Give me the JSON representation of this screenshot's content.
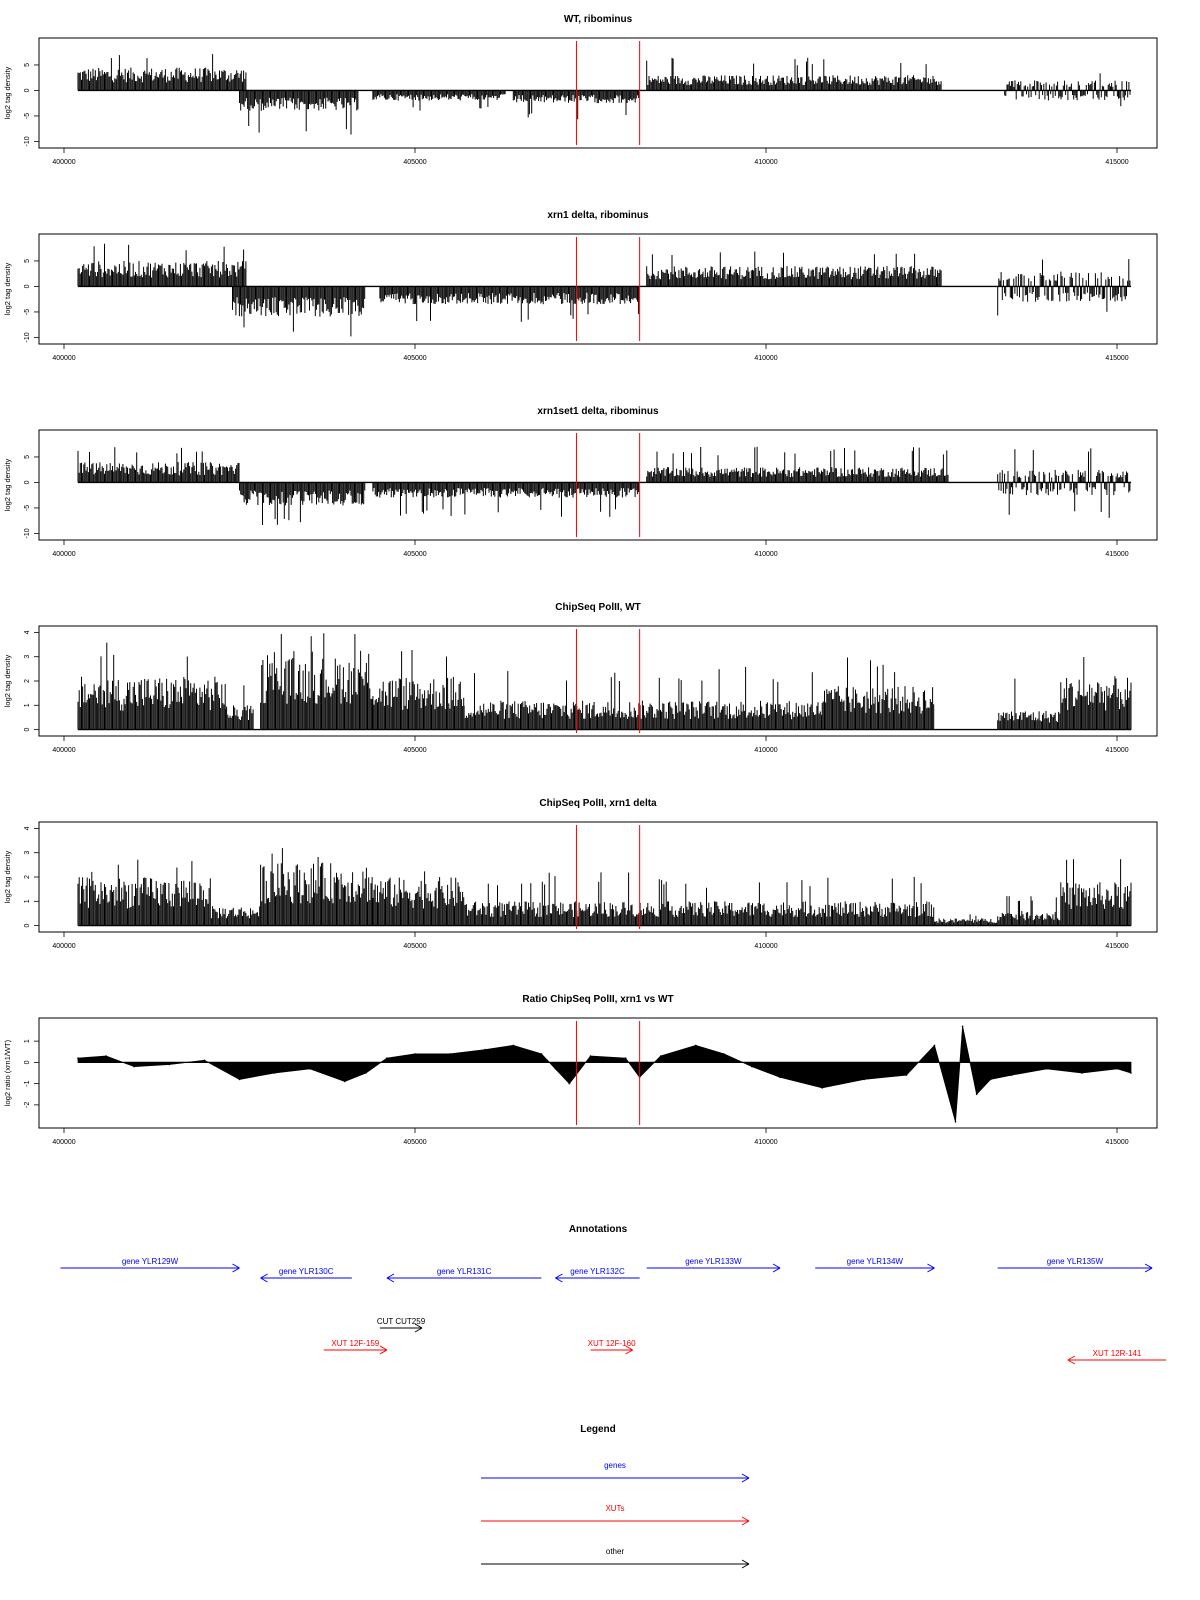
{
  "chart_data": [
    {
      "type": "bar",
      "title": "WT, ribominus",
      "ylabel": "log2 tag density",
      "xlim": [
        400000,
        415500
      ],
      "ylim": [
        -10.5,
        9.5
      ],
      "x_ticks": [
        "400000",
        "405000",
        "410000",
        "415000"
      ],
      "y_ticks": [
        "-10",
        "-5",
        "0",
        "5"
      ],
      "marker_lines_x": [
        407300,
        408200
      ],
      "signal_segments": [
        {
          "x": [
            400200,
            402600
          ],
          "strand": "plus",
          "typical_max": 4.5,
          "peak": 7.8
        },
        {
          "x": [
            402500,
            404200
          ],
          "strand": "minus",
          "typical_max": 4,
          "peak": -9
        },
        {
          "x": [
            404400,
            406300
          ],
          "strand": "minus",
          "typical_max": 2,
          "peak": -4
        },
        {
          "x": [
            406400,
            408200
          ],
          "strand": "minus",
          "typical_max": 2.5,
          "peak": -6
        },
        {
          "x": [
            408300,
            412500
          ],
          "strand": "plus",
          "typical_max": 3,
          "peak": 6.5
        },
        {
          "x": [
            413400,
            415200
          ],
          "strand": "both",
          "typical_max": 2,
          "peak": 4
        }
      ]
    },
    {
      "type": "bar",
      "title": "xrn1 delta, ribominus",
      "ylabel": "log2 tag density",
      "xlim": [
        400000,
        415500
      ],
      "ylim": [
        -10.5,
        9.5
      ],
      "x_ticks": [
        "400000",
        "405000",
        "410000",
        "415000"
      ],
      "y_ticks": [
        "-10",
        "-5",
        "0",
        "5"
      ],
      "marker_lines_x": [
        407300,
        408200
      ],
      "signal_segments": [
        {
          "x": [
            400200,
            402600
          ],
          "strand": "plus",
          "typical_max": 5,
          "peak": 9
        },
        {
          "x": [
            402400,
            404300
          ],
          "strand": "minus",
          "typical_max": 6,
          "peak": -10.5
        },
        {
          "x": [
            404500,
            408200
          ],
          "strand": "minus",
          "typical_max": 3.5,
          "peak": -7
        },
        {
          "x": [
            408300,
            412500
          ],
          "strand": "plus",
          "typical_max": 4,
          "peak": 7
        },
        {
          "x": [
            413300,
            415200
          ],
          "strand": "both",
          "typical_max": 3,
          "peak": -6
        }
      ]
    },
    {
      "type": "bar",
      "title": "xrn1set1 delta, ribominus",
      "ylabel": "log2 tag density",
      "xlim": [
        400000,
        415500
      ],
      "ylim": [
        -10.5,
        9.5
      ],
      "x_ticks": [
        "400000",
        "405000",
        "410000",
        "415000"
      ],
      "y_ticks": [
        "-10",
        "-5",
        "0",
        "5"
      ],
      "marker_lines_x": [
        407300,
        408200
      ],
      "signal_segments": [
        {
          "x": [
            400200,
            402500
          ],
          "strand": "plus",
          "typical_max": 4,
          "peak": 7
        },
        {
          "x": [
            402500,
            404300
          ],
          "strand": "minus",
          "typical_max": 4.5,
          "peak": -9
        },
        {
          "x": [
            404400,
            408200
          ],
          "strand": "minus",
          "typical_max": 3,
          "peak": -7
        },
        {
          "x": [
            408300,
            412600
          ],
          "strand": "plus",
          "typical_max": 3,
          "peak": 7
        },
        {
          "x": [
            413300,
            415200
          ],
          "strand": "both",
          "typical_max": 2.5,
          "peak": 7
        }
      ]
    },
    {
      "type": "bar",
      "title": "ChipSeq PolII, WT",
      "ylabel": "log2 tag density",
      "xlim": [
        400000,
        415500
      ],
      "ylim": [
        -0.1,
        4.1
      ],
      "x_ticks": [
        "400000",
        "405000",
        "410000",
        "415000"
      ],
      "y_ticks": [
        "0",
        "1",
        "2",
        "3",
        "4"
      ],
      "marker_lines_x": [
        407300,
        408200
      ],
      "signal_segments": [
        {
          "x": [
            400200,
            402300
          ],
          "strand": "plus",
          "typical_max": 2.2,
          "peak": 3.7
        },
        {
          "x": [
            402300,
            402700
          ],
          "strand": "plus",
          "typical_max": 1,
          "peak": 2
        },
        {
          "x": [
            402800,
            404400
          ],
          "strand": "plus",
          "typical_max": 3,
          "peak": 4
        },
        {
          "x": [
            404400,
            405700
          ],
          "strand": "plus",
          "typical_max": 2.2,
          "peak": 3.3
        },
        {
          "x": [
            405700,
            408300
          ],
          "strand": "plus",
          "typical_max": 1.2,
          "peak": 2.6
        },
        {
          "x": [
            408300,
            410800
          ],
          "strand": "plus",
          "typical_max": 1.2,
          "peak": 2.6
        },
        {
          "x": [
            410800,
            412400
          ],
          "strand": "plus",
          "typical_max": 1.8,
          "peak": 3
        },
        {
          "x": [
            412400,
            413300
          ],
          "strand": "plus",
          "typical_max": 0,
          "peak": 0
        },
        {
          "x": [
            413300,
            414200
          ],
          "strand": "plus",
          "typical_max": 0.8,
          "peak": 2.5
        },
        {
          "x": [
            414200,
            415200
          ],
          "strand": "plus",
          "typical_max": 2.2,
          "peak": 3.3
        }
      ]
    },
    {
      "type": "bar",
      "title": "ChipSeq PolII, xrn1 delta",
      "ylabel": "log2 tag density",
      "xlim": [
        400000,
        415500
      ],
      "ylim": [
        -0.1,
        4.1
      ],
      "x_ticks": [
        "400000",
        "405000",
        "410000",
        "415000"
      ],
      "y_ticks": [
        "0",
        "1",
        "2",
        "3",
        "4"
      ],
      "marker_lines_x": [
        407300,
        408200
      ],
      "signal_segments": [
        {
          "x": [
            400200,
            402100
          ],
          "strand": "plus",
          "typical_max": 2,
          "peak": 2.9
        },
        {
          "x": [
            402100,
            402800
          ],
          "strand": "plus",
          "typical_max": 0.8,
          "peak": 1.5
        },
        {
          "x": [
            402800,
            404400
          ],
          "strand": "plus",
          "typical_max": 2.6,
          "peak": 3.2
        },
        {
          "x": [
            404400,
            405700
          ],
          "strand": "plus",
          "typical_max": 2,
          "peak": 2.7
        },
        {
          "x": [
            405700,
            408300
          ],
          "strand": "plus",
          "typical_max": 1,
          "peak": 2.2
        },
        {
          "x": [
            408300,
            410800
          ],
          "strand": "plus",
          "typical_max": 1,
          "peak": 2
        },
        {
          "x": [
            410800,
            412400
          ],
          "strand": "plus",
          "typical_max": 1,
          "peak": 2.1
        },
        {
          "x": [
            412400,
            413300
          ],
          "strand": "plus",
          "typical_max": 0.3,
          "peak": 0.5
        },
        {
          "x": [
            413300,
            414200
          ],
          "strand": "plus",
          "typical_max": 0.6,
          "peak": 1.3
        },
        {
          "x": [
            414200,
            415200
          ],
          "strand": "plus",
          "typical_max": 1.8,
          "peak": 2.8
        }
      ]
    },
    {
      "type": "area",
      "title": "Ratio ChipSeq PolII, xrn1 vs WT",
      "ylabel": "log2 ratio (xrn1/WT)",
      "xlim": [
        400000,
        415500
      ],
      "ylim": [
        -2.9,
        1.9
      ],
      "x_ticks": [
        "400000",
        "405000",
        "410000",
        "415000"
      ],
      "y_ticks": [
        "-2",
        "-1",
        "0",
        "1"
      ],
      "marker_lines_x": [
        407300,
        408200
      ],
      "x": [
        400200,
        400600,
        401000,
        401500,
        402000,
        402500,
        403000,
        403500,
        404000,
        404300,
        404600,
        405000,
        405500,
        406000,
        406400,
        406800,
        407000,
        407200,
        407500,
        408000,
        408200,
        408500,
        409000,
        409400,
        409800,
        410200,
        410800,
        411400,
        412000,
        412400,
        412700,
        412800,
        413000,
        413200,
        413500,
        414000,
        414500,
        415000,
        415200
      ],
      "y": [
        0.2,
        0.3,
        -0.2,
        -0.1,
        0.1,
        -0.8,
        -0.5,
        -0.3,
        -0.9,
        -0.5,
        0.2,
        0.4,
        0.4,
        0.6,
        0.8,
        0.4,
        -0.3,
        -1.0,
        0.3,
        0.2,
        -0.7,
        0.3,
        0.8,
        0.4,
        -0.2,
        -0.7,
        -1.2,
        -0.8,
        -0.6,
        0.8,
        -2.8,
        1.7,
        -1.5,
        -0.8,
        -0.6,
        -0.3,
        -0.5,
        -0.3,
        -0.5
      ]
    }
  ],
  "annotations": {
    "title": "Annotations",
    "items": [
      {
        "label": "gene YLR129W",
        "category": "genes",
        "start": 399950,
        "end": 402500,
        "row": 0
      },
      {
        "label": "gene YLR130C",
        "category": "genes",
        "start": 404100,
        "end": 402800,
        "row": 1
      },
      {
        "label": "gene YLR131C",
        "category": "genes",
        "start": 406800,
        "end": 404600,
        "row": 1
      },
      {
        "label": "gene YLR132C",
        "category": "genes",
        "start": 408200,
        "end": 407000,
        "row": 1
      },
      {
        "label": "gene YLR133W",
        "category": "genes",
        "start": 408300,
        "end": 410200,
        "row": 0
      },
      {
        "label": "gene YLR134W",
        "category": "genes",
        "start": 410700,
        "end": 412400,
        "row": 0
      },
      {
        "label": "gene YLR135W",
        "category": "genes",
        "start": 413300,
        "end": 415500,
        "row": 0
      },
      {
        "label": "CUT CUT259",
        "category": "other",
        "start": 404500,
        "end": 405100,
        "row": 2
      },
      {
        "label": "XUT 12F-159",
        "category": "XUTs",
        "start": 403700,
        "end": 404600,
        "row": 3
      },
      {
        "label": "XUT 12F-160",
        "category": "XUTs",
        "start": 407500,
        "end": 408100,
        "row": 3
      },
      {
        "label": "XUT 12R-141",
        "category": "XUTs",
        "start": 415700,
        "end": 414300,
        "row": 4
      }
    ]
  },
  "legend": {
    "title": "Legend",
    "entries": [
      {
        "label": "genes",
        "color": "#0000ff"
      },
      {
        "label": "XUTs",
        "color": "#ff0000"
      },
      {
        "label": "other",
        "color": "#000000"
      }
    ]
  },
  "colors": {
    "marker_line": "#ff0000",
    "signal": "#000000",
    "axis": "#000000"
  }
}
